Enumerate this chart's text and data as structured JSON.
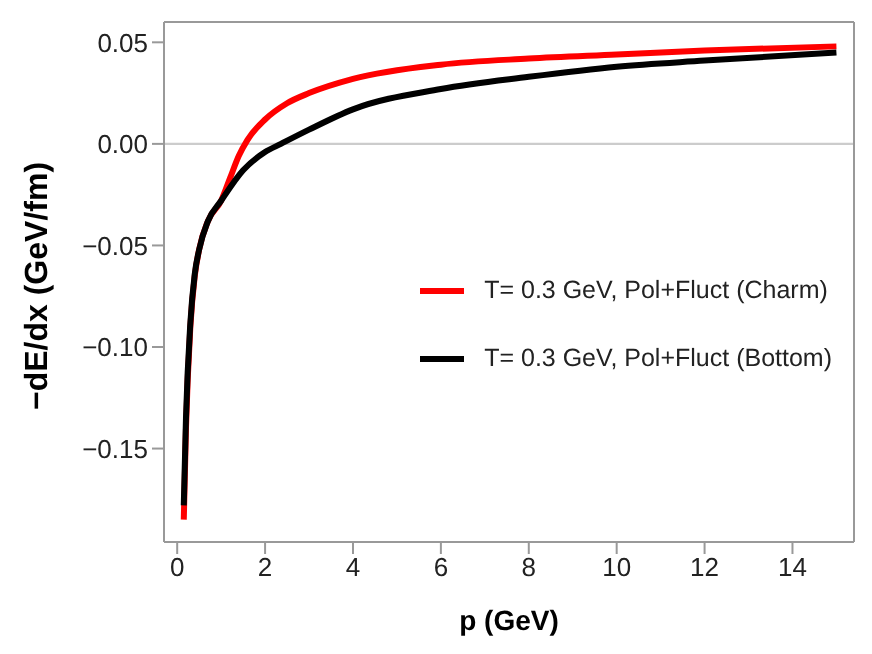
{
  "chart_data": {
    "type": "line",
    "xlabel": "p (GeV)",
    "ylabel": "−dE/dx (GeV/fm)",
    "xlim": [
      -0.3,
      15.4
    ],
    "ylim": [
      -0.196,
      0.06
    ],
    "xticks": [
      0,
      2,
      4,
      6,
      8,
      10,
      12,
      14
    ],
    "yticks": [
      {
        "value": 0.05,
        "label": "0.05"
      },
      {
        "value": 0,
        "label": "0.00"
      },
      {
        "value": -0.05,
        "label": "−0.05"
      },
      {
        "value": -0.1,
        "label": "−0.10"
      },
      {
        "value": -0.15,
        "label": "−0.15"
      }
    ],
    "legend": "right",
    "marker": "none",
    "line_style": "solid",
    "ref_lines": [
      {
        "axis": "y",
        "value": 0,
        "color": "#cccccc"
      }
    ],
    "series": [
      {
        "name": "T= 0.3 GeV, Pol+Fluct (Charm)",
        "color": "#ff0000",
        "x": [
          0.15,
          0.2,
          0.3,
          0.4,
          0.5,
          0.7,
          1.0,
          1.2,
          1.4,
          1.6,
          2,
          2.5,
          3,
          4,
          6,
          8,
          10,
          12,
          15
        ],
        "values": [
          -0.185,
          -0.14,
          -0.09,
          -0.065,
          -0.052,
          -0.038,
          -0.028,
          -0.017,
          -0.006,
          0.002,
          0.012,
          0.02,
          0.025,
          0.032,
          0.039,
          0.042,
          0.044,
          0.046,
          0.048
        ]
      },
      {
        "name": "T= 0.3 GeV, Pol+Fluct (Bottom)",
        "color": "#000000",
        "x": [
          0.15,
          0.2,
          0.3,
          0.4,
          0.5,
          0.7,
          1.0,
          1.5,
          2,
          2.36,
          3,
          4,
          6,
          8,
          10,
          12,
          15
        ],
        "values": [
          -0.178,
          -0.135,
          -0.088,
          -0.064,
          -0.052,
          -0.038,
          -0.028,
          -0.013,
          -0.004,
          0,
          0.007,
          0.017,
          0.027,
          0.033,
          0.038,
          0.041,
          0.045
        ]
      }
    ]
  }
}
